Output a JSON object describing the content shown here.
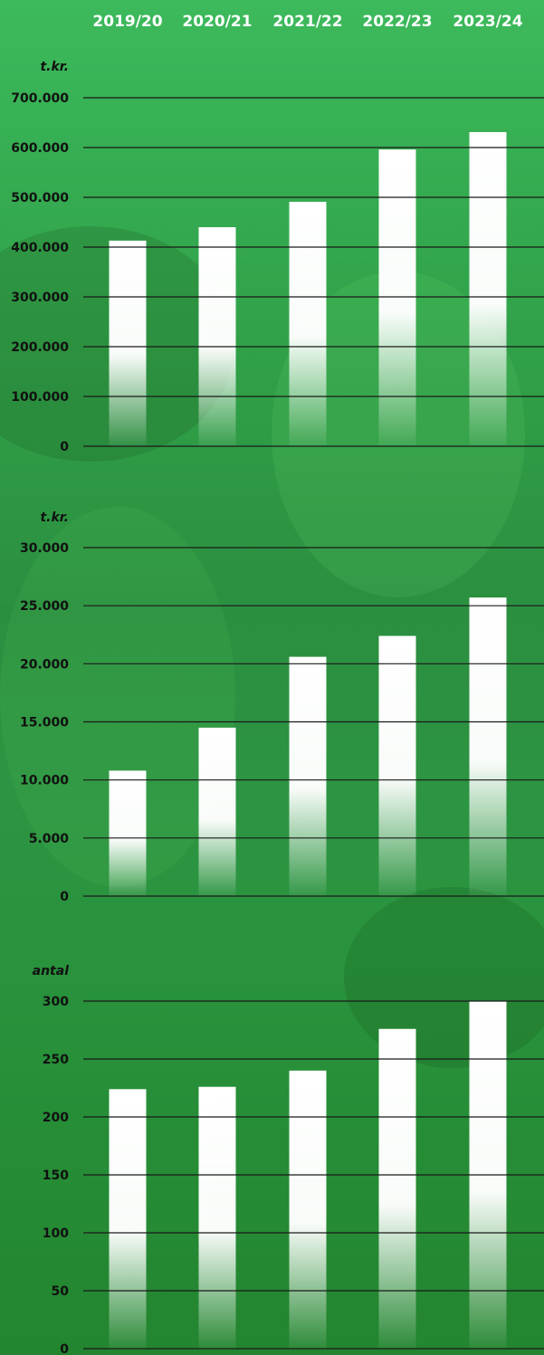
{
  "years": [
    "2019/20",
    "2020/21",
    "2021/22",
    "2022/23",
    "2023/24"
  ],
  "colors": {
    "background": "#2f9d46",
    "bar": "#ffffff",
    "text": "#111111",
    "year_text": "#ffffff",
    "grid": "#1a1a1a"
  },
  "chart_data": [
    {
      "type": "bar",
      "categories": [
        "2019/20",
        "2020/21",
        "2021/22",
        "2022/23",
        "2023/24"
      ],
      "values": [
        413000,
        440000,
        491000,
        596000,
        631000
      ],
      "ylabel": "t.kr.",
      "ylim": [
        0,
        700000
      ],
      "yticks": [
        0,
        100000,
        200000,
        300000,
        400000,
        500000,
        600000,
        700000
      ],
      "ytick_labels": [
        "0",
        "100.000",
        "200.000",
        "300.000",
        "400.000",
        "500.000",
        "600.000",
        "700.000"
      ],
      "grid": true
    },
    {
      "type": "bar",
      "categories": [
        "2019/20",
        "2020/21",
        "2021/22",
        "2022/23",
        "2023/24"
      ],
      "values": [
        10800,
        14500,
        20600,
        22400,
        25700
      ],
      "ylabel": "t.kr.",
      "ylim": [
        0,
        30000
      ],
      "yticks": [
        0,
        5000,
        10000,
        15000,
        20000,
        25000,
        30000
      ],
      "ytick_labels": [
        "0",
        "5.000",
        "10.000",
        "15.000",
        "20.000",
        "25.000",
        "30.000"
      ],
      "grid": true
    },
    {
      "type": "bar",
      "categories": [
        "2019/20",
        "2020/21",
        "2021/22",
        "2022/23",
        "2023/24"
      ],
      "values": [
        224,
        226,
        240,
        276,
        300
      ],
      "ylabel": "antal",
      "ylim": [
        0,
        300
      ],
      "yticks": [
        0,
        50,
        100,
        150,
        200,
        250,
        300
      ],
      "ytick_labels": [
        "0",
        "50",
        "100",
        "150",
        "200",
        "250",
        "300"
      ],
      "grid": true
    }
  ]
}
